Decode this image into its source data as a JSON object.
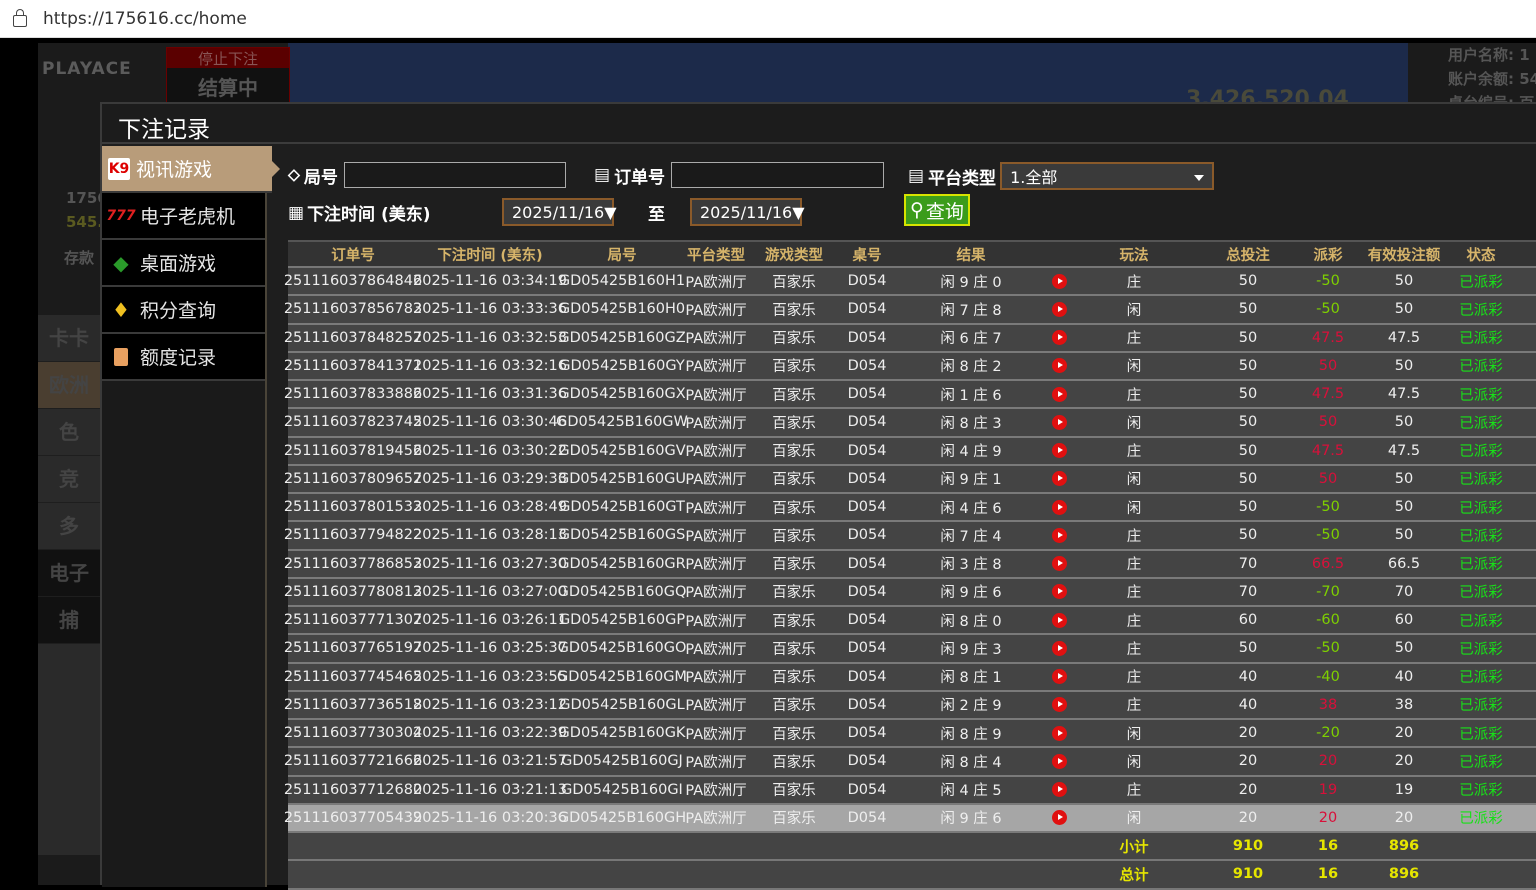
{
  "browser": {
    "url": "https://175616.cc/home"
  },
  "background": {
    "logo": "PLAYACE",
    "stop_label": "停止下注",
    "settling_label": "结算中",
    "user_id": "1756",
    "balance": "545.",
    "deposit": "存款",
    "pool_amount": "3,426,520.04",
    "info_lines": [
      "用户名称: 1",
      "账户余额: 54",
      "桌台编号: 百"
    ],
    "side_items": [
      "卡卡",
      "欧洲",
      "色",
      "竞",
      "多",
      "电子",
      "捕"
    ]
  },
  "modal": {
    "title": "下注记录",
    "nav": [
      {
        "label": "视讯游戏",
        "icon": "playing-cards-icon",
        "active": true
      },
      {
        "label": "电子老虎机",
        "icon": "slot-777-icon",
        "active": false
      },
      {
        "label": "桌面游戏",
        "icon": "table-game-chips-icon",
        "active": false
      },
      {
        "label": "积分查询",
        "icon": "diamond-icon",
        "active": false
      },
      {
        "label": "额度记录",
        "icon": "document-icon",
        "active": false
      }
    ],
    "filters": {
      "round_label": "局号",
      "round_value": "",
      "order_label": "订单号",
      "order_value": "",
      "platform_label": "平台类型",
      "platform_value": "1.全部",
      "time_label": "下注时间 (美东)",
      "date_from": "2025/11/16▼",
      "to_label": "至",
      "date_to": "2025/11/16▼",
      "query_label": "查询"
    },
    "table": {
      "headers": [
        "订单号",
        "下注时间 (美东)",
        "局号",
        "平台类型",
        "游戏类型",
        "桌号",
        "结果",
        "",
        "玩法",
        "总投注",
        "派彩",
        "有效投注额",
        "状态"
      ],
      "rows": [
        [
          "251116037864846",
          "2025-11-16 03:34:19",
          "GD05425B160H1",
          "PA欧洲厅",
          "百家乐",
          "D054",
          "闲 9 庄 0",
          "庄",
          "50",
          "-50",
          "50",
          "已派彩"
        ],
        [
          "251116037856783",
          "2025-11-16 03:33:36",
          "GD05425B160H0",
          "PA欧洲厅",
          "百家乐",
          "D054",
          "闲 7 庄 8",
          "闲",
          "50",
          "-50",
          "50",
          "已派彩"
        ],
        [
          "251116037848257",
          "2025-11-16 03:32:53",
          "GD05425B160GZ",
          "PA欧洲厅",
          "百家乐",
          "D054",
          "闲 6 庄 7",
          "庄",
          "50",
          "47.5",
          "47.5",
          "已派彩"
        ],
        [
          "251116037841371",
          "2025-11-16 03:32:16",
          "GD05425B160GY",
          "PA欧洲厅",
          "百家乐",
          "D054",
          "闲 8 庄 2",
          "闲",
          "50",
          "50",
          "50",
          "已派彩"
        ],
        [
          "251116037833886",
          "2025-11-16 03:31:36",
          "GD05425B160GX",
          "PA欧洲厅",
          "百家乐",
          "D054",
          "闲 1 庄 6",
          "庄",
          "50",
          "47.5",
          "47.5",
          "已派彩"
        ],
        [
          "251116037823745",
          "2025-11-16 03:30:46",
          "GD05425B160GW",
          "PA欧洲厅",
          "百家乐",
          "D054",
          "闲 8 庄 3",
          "闲",
          "50",
          "50",
          "50",
          "已派彩"
        ],
        [
          "251116037819456",
          "2025-11-16 03:30:22",
          "GD05425B160GV",
          "PA欧洲厅",
          "百家乐",
          "D054",
          "闲 4 庄 9",
          "庄",
          "50",
          "47.5",
          "47.5",
          "已派彩"
        ],
        [
          "251116037809657",
          "2025-11-16 03:29:33",
          "GD05425B160GU",
          "PA欧洲厅",
          "百家乐",
          "D054",
          "闲 9 庄 1",
          "闲",
          "50",
          "50",
          "50",
          "已派彩"
        ],
        [
          "251116037801533",
          "2025-11-16 03:28:49",
          "GD05425B160GT",
          "PA欧洲厅",
          "百家乐",
          "D054",
          "闲 4 庄 6",
          "闲",
          "50",
          "-50",
          "50",
          "已派彩"
        ],
        [
          "251116037794822",
          "2025-11-16 03:28:13",
          "GD05425B160GS",
          "PA欧洲厅",
          "百家乐",
          "D054",
          "闲 7 庄 4",
          "庄",
          "50",
          "-50",
          "50",
          "已派彩"
        ],
        [
          "251116037786853",
          "2025-11-16 03:27:30",
          "GD05425B160GR",
          "PA欧洲厅",
          "百家乐",
          "D054",
          "闲 3 庄 8",
          "庄",
          "70",
          "66.5",
          "66.5",
          "已派彩"
        ],
        [
          "251116037780813",
          "2025-11-16 03:27:00",
          "GD05425B160GQ",
          "PA欧洲厅",
          "百家乐",
          "D054",
          "闲 9 庄 6",
          "庄",
          "70",
          "-70",
          "70",
          "已派彩"
        ],
        [
          "251116037771307",
          "2025-11-16 03:26:11",
          "GD05425B160GP",
          "PA欧洲厅",
          "百家乐",
          "D054",
          "闲 8 庄 0",
          "庄",
          "60",
          "-60",
          "60",
          "已派彩"
        ],
        [
          "251116037765197",
          "2025-11-16 03:25:37",
          "GD05425B160GO",
          "PA欧洲厅",
          "百家乐",
          "D054",
          "闲 9 庄 3",
          "庄",
          "50",
          "-50",
          "50",
          "已派彩"
        ],
        [
          "251116037745465",
          "2025-11-16 03:23:55",
          "GD05425B160GM",
          "PA欧洲厅",
          "百家乐",
          "D054",
          "闲 8 庄 1",
          "庄",
          "40",
          "-40",
          "40",
          "已派彩"
        ],
        [
          "251116037736518",
          "2025-11-16 03:23:12",
          "GD05425B160GL",
          "PA欧洲厅",
          "百家乐",
          "D054",
          "闲 2 庄 9",
          "庄",
          "40",
          "38",
          "38",
          "已派彩"
        ],
        [
          "251116037730304",
          "2025-11-16 03:22:39",
          "GD05425B160GK",
          "PA欧洲厅",
          "百家乐",
          "D054",
          "闲 8 庄 9",
          "闲",
          "20",
          "-20",
          "20",
          "已派彩"
        ],
        [
          "251116037721666",
          "2025-11-16 03:21:57",
          "GD05425B160GJ",
          "PA欧洲厅",
          "百家乐",
          "D054",
          "闲 8 庄 4",
          "闲",
          "20",
          "20",
          "20",
          "已派彩"
        ],
        [
          "251116037712680",
          "2025-11-16 03:21:13",
          "GD05425B160GI",
          "PA欧洲厅",
          "百家乐",
          "D054",
          "闲 4 庄 5",
          "庄",
          "20",
          "19",
          "19",
          "已派彩"
        ],
        [
          "251116037705439",
          "2025-11-16 03:20:36",
          "GD05425B160GH",
          "PA欧洲厅",
          "百家乐",
          "D054",
          "闲 9 庄 6",
          "闲",
          "20",
          "20",
          "20",
          "已派彩"
        ]
      ],
      "selected_row": 19,
      "subtotal": {
        "label": "小计",
        "total_bet": "910",
        "payout": "16",
        "valid_bet": "896"
      },
      "total": {
        "label": "总计",
        "total_bet": "910",
        "payout": "16",
        "valid_bet": "896"
      }
    }
  },
  "colors": {
    "accent": "#b89c7a",
    "header_text": "#d6b46a",
    "payout_loss": "#7ed000",
    "payout_win": "#d8103a",
    "status": "#18e018",
    "sum_text": "#e6e600",
    "query_button": "#3b9c1b"
  }
}
